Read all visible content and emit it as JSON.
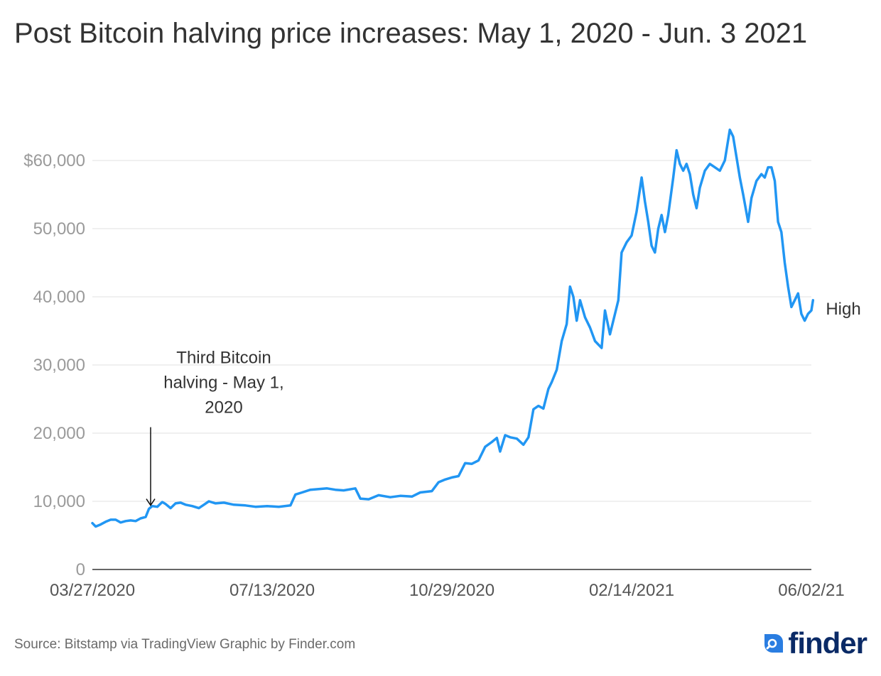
{
  "title": "Post Bitcoin halving price increases: May 1, 2020 - Jun. 3 2021",
  "footer": {
    "source": "Source: Bitstamp via TradingView Graphic by Finder.com",
    "brand": "finder"
  },
  "colors": {
    "series": "#2196F3",
    "grid": "#e0e0e0",
    "axis": "#333333"
  },
  "chart_data": {
    "type": "line",
    "title": "Post Bitcoin halving price increases: May 1, 2020 - Jun. 3 2021",
    "xlabel": "",
    "ylabel": "",
    "xlim": [
      "2020-03-27",
      "2021-06-02"
    ],
    "ylim": [
      0,
      70000
    ],
    "grid": true,
    "y_ticks": [
      0,
      10000,
      20000,
      30000,
      40000,
      50000,
      60000
    ],
    "y_tick_labels": [
      "0",
      "10,000",
      "20,000",
      "30,000",
      "40,000",
      "50,000",
      "$60,000"
    ],
    "x_ticks": [
      "2020-03-27",
      "2020-07-13",
      "2020-10-29",
      "2021-02-14",
      "2021-06-02"
    ],
    "x_tick_labels": [
      "03/27/2020",
      "07/13/2020",
      "10/29/2020",
      "02/14/2021",
      "06/02/21"
    ],
    "annotations": [
      {
        "date": "2020-05-01",
        "value": 9000,
        "text": [
          "Third Bitcoin",
          "halving - May 1,",
          "2020"
        ]
      }
    ],
    "series": [
      {
        "name": "High",
        "points": [
          [
            "2020-03-27",
            6800
          ],
          [
            "2020-03-29",
            6300
          ],
          [
            "2020-04-01",
            6600
          ],
          [
            "2020-04-04",
            7000
          ],
          [
            "2020-04-07",
            7300
          ],
          [
            "2020-04-10",
            7300
          ],
          [
            "2020-04-13",
            6900
          ],
          [
            "2020-04-16",
            7100
          ],
          [
            "2020-04-19",
            7200
          ],
          [
            "2020-04-22",
            7100
          ],
          [
            "2020-04-25",
            7500
          ],
          [
            "2020-04-28",
            7700
          ],
          [
            "2020-04-30",
            8900
          ],
          [
            "2020-05-02",
            9300
          ],
          [
            "2020-05-05",
            9200
          ],
          [
            "2020-05-08",
            9900
          ],
          [
            "2020-05-10",
            9600
          ],
          [
            "2020-05-13",
            9000
          ],
          [
            "2020-05-16",
            9700
          ],
          [
            "2020-05-19",
            9800
          ],
          [
            "2020-05-22",
            9500
          ],
          [
            "2020-05-26",
            9300
          ],
          [
            "2020-05-30",
            9000
          ],
          [
            "2020-06-02",
            9500
          ],
          [
            "2020-06-05",
            10000
          ],
          [
            "2020-06-09",
            9700
          ],
          [
            "2020-06-14",
            9800
          ],
          [
            "2020-06-20",
            9500
          ],
          [
            "2020-06-27",
            9400
          ],
          [
            "2020-07-03",
            9200
          ],
          [
            "2020-07-10",
            9300
          ],
          [
            "2020-07-17",
            9200
          ],
          [
            "2020-07-24",
            9400
          ],
          [
            "2020-07-27",
            11000
          ],
          [
            "2020-07-31",
            11300
          ],
          [
            "2020-08-05",
            11700
          ],
          [
            "2020-08-10",
            11800
          ],
          [
            "2020-08-15",
            11900
          ],
          [
            "2020-08-20",
            11700
          ],
          [
            "2020-08-25",
            11600
          ],
          [
            "2020-09-01",
            11900
          ],
          [
            "2020-09-04",
            10400
          ],
          [
            "2020-09-09",
            10300
          ],
          [
            "2020-09-15",
            10900
          ],
          [
            "2020-09-22",
            10600
          ],
          [
            "2020-09-28",
            10800
          ],
          [
            "2020-10-05",
            10700
          ],
          [
            "2020-10-10",
            11300
          ],
          [
            "2020-10-17",
            11500
          ],
          [
            "2020-10-21",
            12800
          ],
          [
            "2020-10-25",
            13200
          ],
          [
            "2020-10-29",
            13500
          ],
          [
            "2020-11-02",
            13700
          ],
          [
            "2020-11-06",
            15600
          ],
          [
            "2020-11-10",
            15500
          ],
          [
            "2020-11-14",
            16000
          ],
          [
            "2020-11-18",
            18000
          ],
          [
            "2020-11-22",
            18700
          ],
          [
            "2020-11-25",
            19300
          ],
          [
            "2020-11-27",
            17300
          ],
          [
            "2020-11-30",
            19700
          ],
          [
            "2020-12-03",
            19400
          ],
          [
            "2020-12-07",
            19200
          ],
          [
            "2020-12-11",
            18300
          ],
          [
            "2020-12-14",
            19400
          ],
          [
            "2020-12-17",
            23500
          ],
          [
            "2020-12-20",
            24000
          ],
          [
            "2020-12-23",
            23600
          ],
          [
            "2020-12-26",
            26500
          ],
          [
            "2020-12-28",
            27500
          ],
          [
            "2020-12-31",
            29300
          ],
          [
            "2021-01-03",
            33500
          ],
          [
            "2021-01-06",
            36000
          ],
          [
            "2021-01-08",
            41500
          ],
          [
            "2021-01-10",
            40000
          ],
          [
            "2021-01-12",
            36500
          ],
          [
            "2021-01-14",
            39500
          ],
          [
            "2021-01-17",
            37000
          ],
          [
            "2021-01-20",
            35500
          ],
          [
            "2021-01-23",
            33500
          ],
          [
            "2021-01-27",
            32500
          ],
          [
            "2021-01-29",
            38000
          ],
          [
            "2021-02-01",
            34500
          ],
          [
            "2021-02-04",
            37500
          ],
          [
            "2021-02-06",
            39500
          ],
          [
            "2021-02-08",
            46500
          ],
          [
            "2021-02-11",
            48000
          ],
          [
            "2021-02-14",
            49000
          ],
          [
            "2021-02-17",
            52500
          ],
          [
            "2021-02-20",
            57500
          ],
          [
            "2021-02-22",
            54000
          ],
          [
            "2021-02-24",
            51000
          ],
          [
            "2021-02-26",
            47500
          ],
          [
            "2021-02-28",
            46500
          ],
          [
            "2021-03-02",
            50000
          ],
          [
            "2021-03-04",
            52000
          ],
          [
            "2021-03-06",
            49500
          ],
          [
            "2021-03-08",
            52000
          ],
          [
            "2021-03-11",
            57500
          ],
          [
            "2021-03-13",
            61500
          ],
          [
            "2021-03-15",
            59500
          ],
          [
            "2021-03-17",
            58500
          ],
          [
            "2021-03-19",
            59500
          ],
          [
            "2021-03-21",
            58000
          ],
          [
            "2021-03-23",
            55000
          ],
          [
            "2021-03-25",
            53000
          ],
          [
            "2021-03-27",
            56000
          ],
          [
            "2021-03-30",
            58500
          ],
          [
            "2021-04-02",
            59500
          ],
          [
            "2021-04-05",
            59000
          ],
          [
            "2021-04-08",
            58500
          ],
          [
            "2021-04-11",
            60000
          ],
          [
            "2021-04-14",
            64500
          ],
          [
            "2021-04-16",
            63500
          ],
          [
            "2021-04-18",
            60500
          ],
          [
            "2021-04-20",
            57500
          ],
          [
            "2021-04-22",
            55000
          ],
          [
            "2021-04-25",
            51000
          ],
          [
            "2021-04-27",
            54500
          ],
          [
            "2021-04-30",
            57000
          ],
          [
            "2021-05-03",
            58000
          ],
          [
            "2021-05-05",
            57500
          ],
          [
            "2021-05-07",
            59000
          ],
          [
            "2021-05-09",
            59000
          ],
          [
            "2021-05-11",
            57000
          ],
          [
            "2021-05-13",
            51000
          ],
          [
            "2021-05-15",
            49500
          ],
          [
            "2021-05-17",
            45000
          ],
          [
            "2021-05-19",
            41500
          ],
          [
            "2021-05-21",
            38500
          ],
          [
            "2021-05-23",
            39500
          ],
          [
            "2021-05-25",
            40500
          ],
          [
            "2021-05-27",
            37500
          ],
          [
            "2021-05-29",
            36500
          ],
          [
            "2021-05-31",
            37500
          ],
          [
            "2021-06-02",
            38000
          ],
          [
            "2021-06-03",
            39500
          ]
        ]
      }
    ]
  }
}
